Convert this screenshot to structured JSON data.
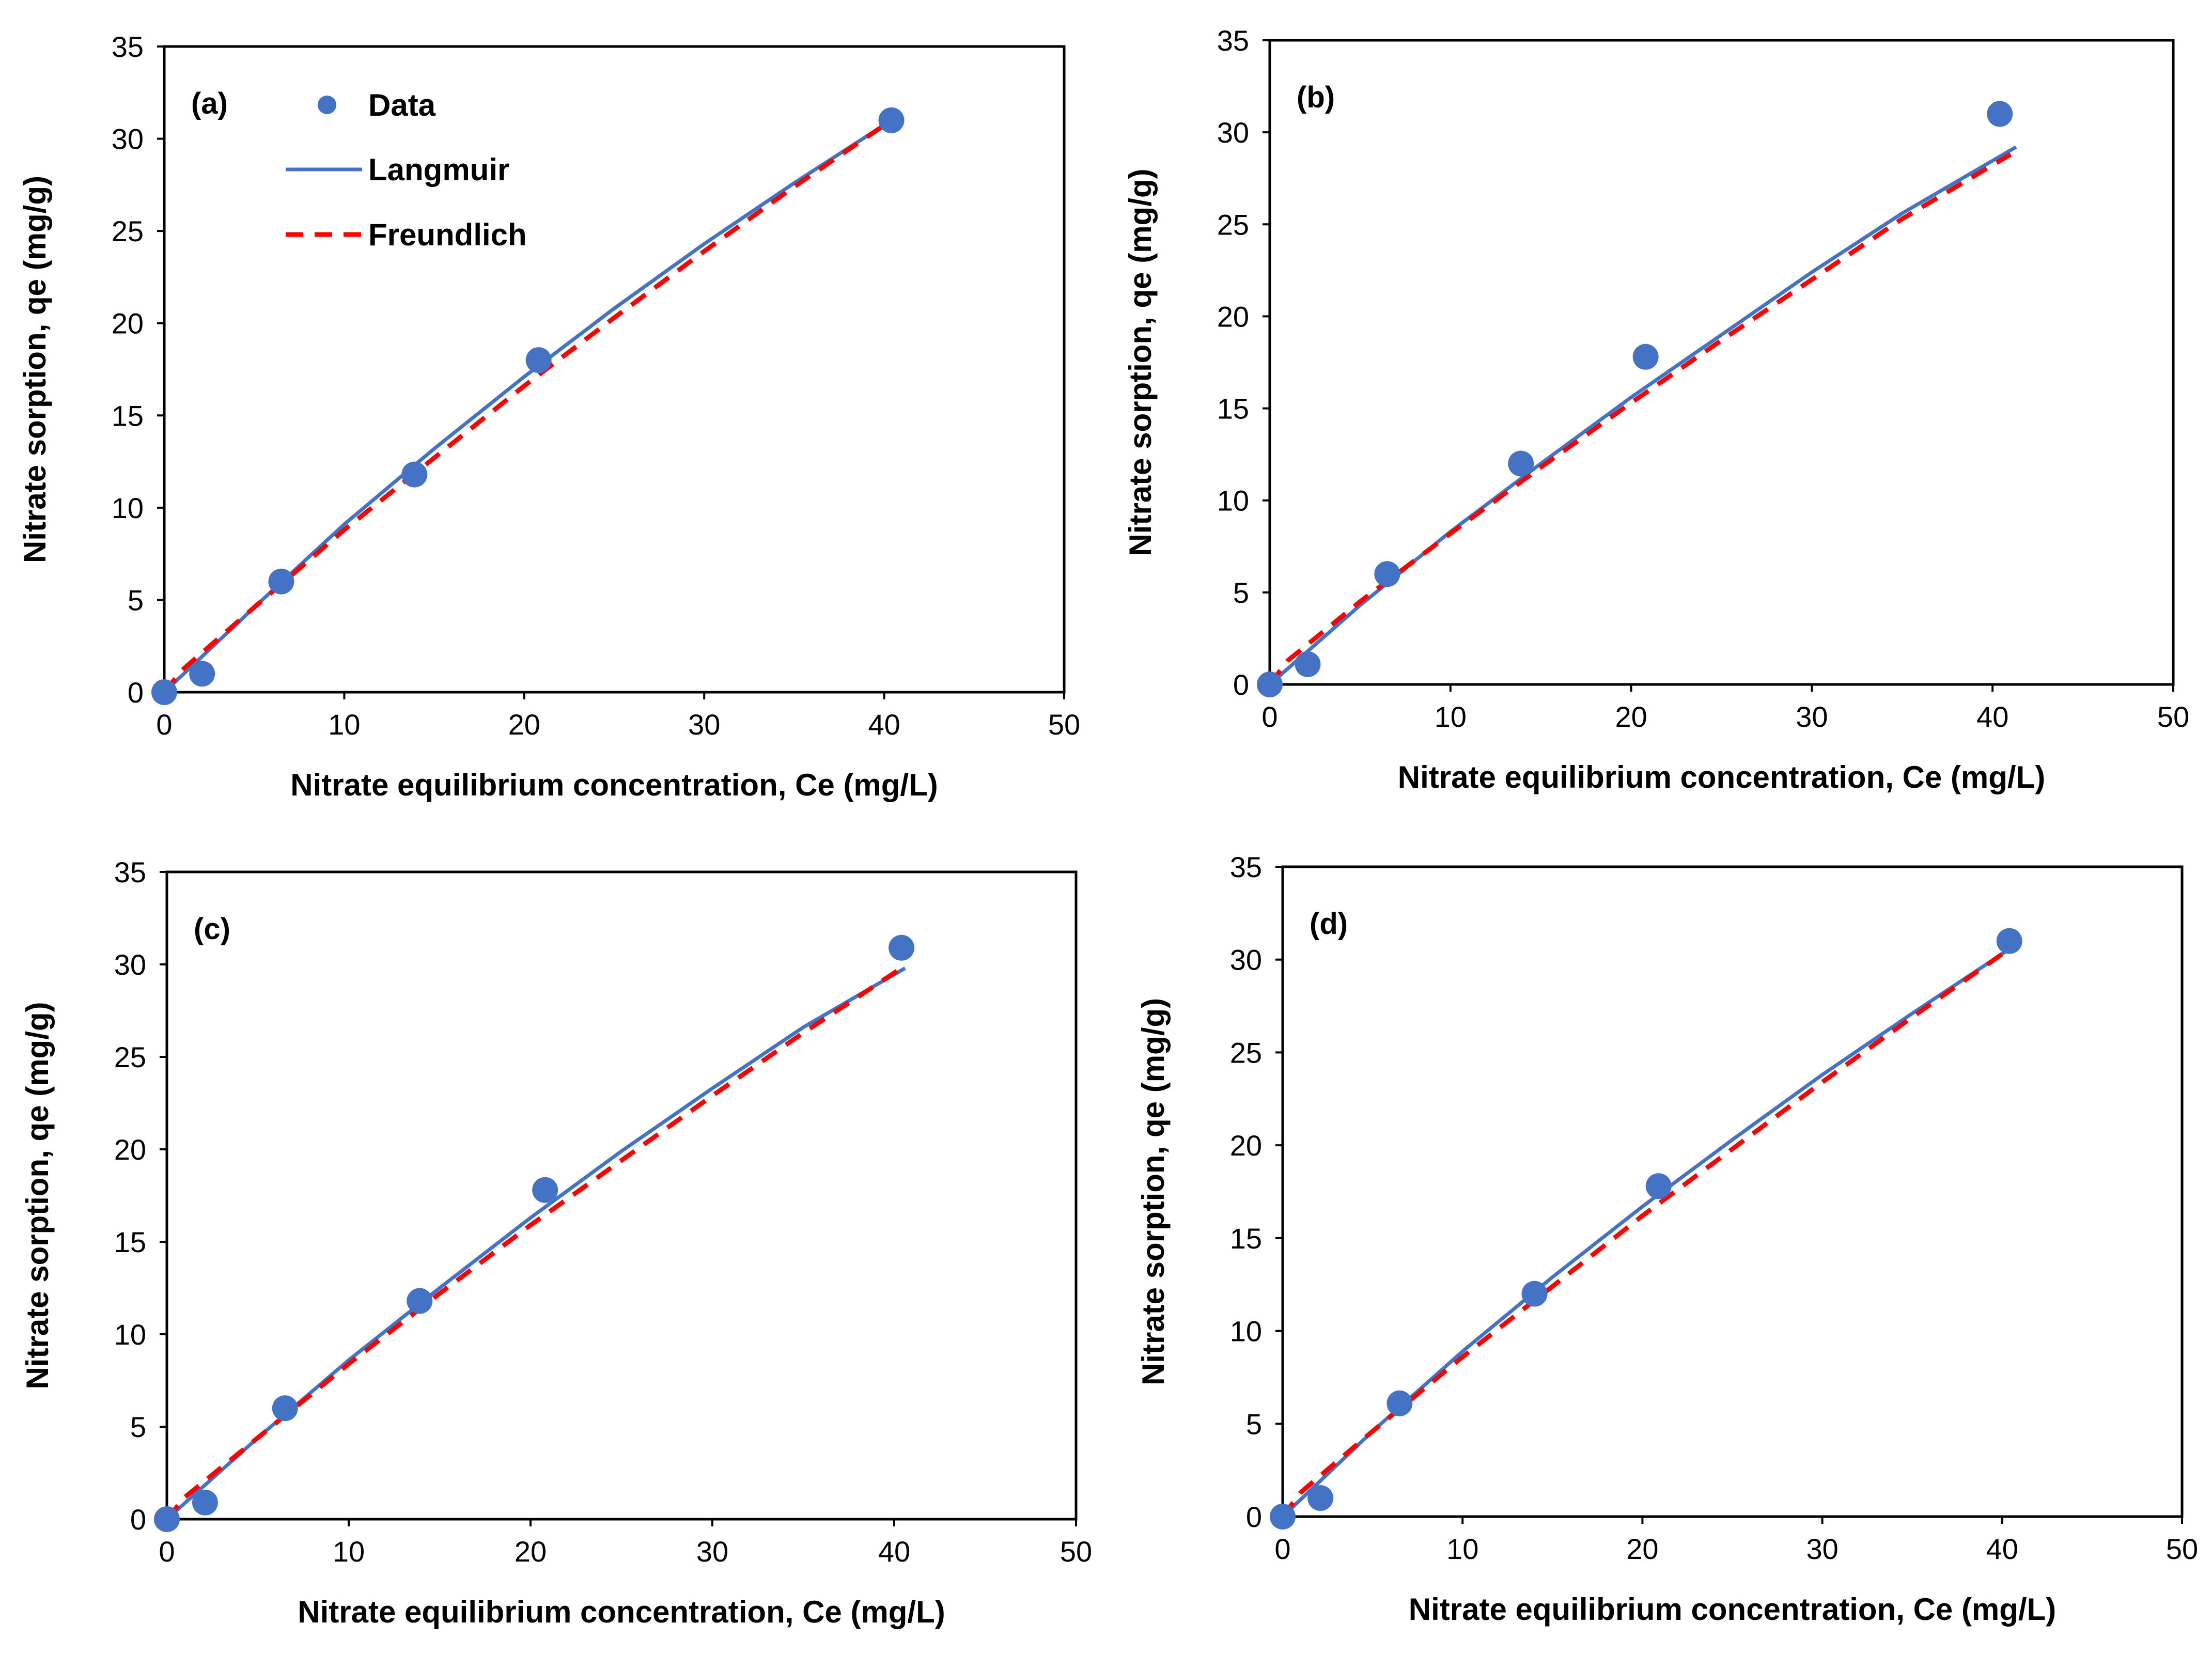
{
  "figure": {
    "legend": {
      "data": "Data",
      "langmuir": "Langmuir",
      "freundlich": "Freundlich"
    }
  },
  "colors": {
    "data_marker": "#4472C4",
    "langmuir_line": "#4472C4",
    "freundlich_line": "#FF0000",
    "axes": "#000000"
  },
  "chart_data": [
    {
      "type": "scatter",
      "panel_label": "(a)",
      "xlabel": "Nitrate equilibrium concentration, Ce (mg/L)",
      "ylabel": "Nitrate sorption, qe (mg/g)",
      "xlim": [
        0,
        50
      ],
      "ylim": [
        0,
        35
      ],
      "xticks": [
        0,
        10,
        20,
        30,
        40,
        50
      ],
      "yticks": [
        0,
        5,
        10,
        15,
        20,
        25,
        30,
        35
      ],
      "legend_shown": true,
      "series": [
        {
          "name": "Data",
          "kind": "markers",
          "x": [
            0,
            2.1,
            6.5,
            13.9,
            20.8,
            40.4
          ],
          "y": [
            0,
            1.0,
            6.0,
            11.8,
            18.0,
            31.0
          ]
        },
        {
          "name": "Langmuir",
          "kind": "solid-line",
          "x": [
            0,
            5,
            10,
            15,
            20,
            25,
            30,
            35,
            40.4
          ],
          "y": [
            0,
            4.6,
            9.1,
            13.2,
            17.1,
            20.8,
            24.3,
            27.6,
            31.0
          ]
        },
        {
          "name": "Freundlich",
          "kind": "dashed-line",
          "x": [
            0,
            1,
            5,
            10,
            15,
            20,
            25,
            30,
            35,
            40.4
          ],
          "y": [
            0,
            1.2,
            4.6,
            8.8,
            12.7,
            16.6,
            20.3,
            23.9,
            27.4,
            31.0
          ]
        }
      ]
    },
    {
      "type": "scatter",
      "panel_label": "(b)",
      "xlabel": "Nitrate equilibrium concentration, Ce (mg/L)",
      "ylabel": "Nitrate sorption, qe (mg/g)",
      "xlim": [
        0,
        50
      ],
      "ylim": [
        0,
        35
      ],
      "xticks": [
        0,
        10,
        20,
        30,
        40,
        50
      ],
      "yticks": [
        0,
        5,
        10,
        15,
        20,
        25,
        30,
        35
      ],
      "legend_shown": false,
      "series": [
        {
          "name": "Data",
          "kind": "markers",
          "x": [
            0,
            2.1,
            6.5,
            13.9,
            20.8,
            40.4
          ],
          "y": [
            0,
            1.1,
            6.0,
            12.0,
            17.8,
            31.0
          ]
        },
        {
          "name": "Langmuir",
          "kind": "solid-line",
          "x": [
            0,
            5,
            10,
            15,
            20,
            25,
            30,
            35,
            41.3
          ],
          "y": [
            0,
            4.3,
            8.3,
            12.0,
            15.6,
            19.0,
            22.4,
            25.6,
            29.2
          ]
        },
        {
          "name": "Freundlich",
          "kind": "dashed-line",
          "x": [
            0,
            1,
            5,
            10,
            15,
            20,
            25,
            30,
            35,
            41.0
          ],
          "y": [
            0,
            1.3,
            4.5,
            8.2,
            11.8,
            15.3,
            18.7,
            22.0,
            25.3,
            28.8
          ]
        }
      ]
    },
    {
      "type": "scatter",
      "panel_label": "(c)",
      "xlabel": "Nitrate equilibrium concentration, Ce (mg/L)",
      "ylabel": "Nitrate sorption, qe (mg/g)",
      "xlim": [
        0,
        50
      ],
      "ylim": [
        0,
        35
      ],
      "xticks": [
        0,
        10,
        20,
        30,
        40,
        50
      ],
      "yticks": [
        0,
        5,
        10,
        15,
        20,
        25,
        30,
        35
      ],
      "legend_shown": false,
      "series": [
        {
          "name": "Data",
          "kind": "markers",
          "x": [
            0,
            2.1,
            6.5,
            13.9,
            20.8,
            40.4
          ],
          "y": [
            0,
            0.9,
            6.0,
            11.8,
            17.8,
            30.9
          ]
        },
        {
          "name": "Langmuir",
          "kind": "solid-line",
          "x": [
            0,
            5,
            10,
            15,
            20,
            25,
            30,
            35,
            40.6
          ],
          "y": [
            0,
            4.4,
            8.6,
            12.5,
            16.3,
            19.9,
            23.3,
            26.6,
            29.8
          ]
        },
        {
          "name": "Freundlich",
          "kind": "dashed-line",
          "x": [
            0,
            1,
            5,
            10,
            15,
            20,
            25,
            30,
            35,
            40.4
          ],
          "y": [
            0,
            1.2,
            4.4,
            8.4,
            12.2,
            15.9,
            19.4,
            22.9,
            26.3,
            29.8
          ]
        }
      ]
    },
    {
      "type": "scatter",
      "panel_label": "(d)",
      "xlabel": "Nitrate equilibrium concentration, Ce (mg/L)",
      "ylabel": "Nitrate sorption, qe (mg/g)",
      "xlim": [
        0,
        50
      ],
      "ylim": [
        0,
        35
      ],
      "xticks": [
        0,
        10,
        20,
        30,
        40,
        50
      ],
      "yticks": [
        0,
        5,
        10,
        15,
        20,
        25,
        30,
        35
      ],
      "legend_shown": false,
      "series": [
        {
          "name": "Data",
          "kind": "markers",
          "x": [
            0,
            2.1,
            6.5,
            14.0,
            20.9,
            40.4
          ],
          "y": [
            0,
            1.0,
            6.1,
            12.0,
            17.8,
            31.0
          ]
        },
        {
          "name": "Langmuir",
          "kind": "solid-line",
          "x": [
            0,
            5,
            10,
            15,
            20,
            25,
            30,
            35,
            40.3
          ],
          "y": [
            0,
            4.6,
            8.9,
            12.9,
            16.7,
            20.3,
            23.8,
            27.1,
            30.5
          ]
        },
        {
          "name": "Freundlich",
          "kind": "dashed-line",
          "x": [
            0,
            1,
            5,
            10,
            15,
            20,
            25,
            30,
            35,
            40.3
          ],
          "y": [
            0,
            1.3,
            4.6,
            8.6,
            12.4,
            16.2,
            19.8,
            23.4,
            26.9,
            30.5
          ]
        }
      ]
    }
  ]
}
